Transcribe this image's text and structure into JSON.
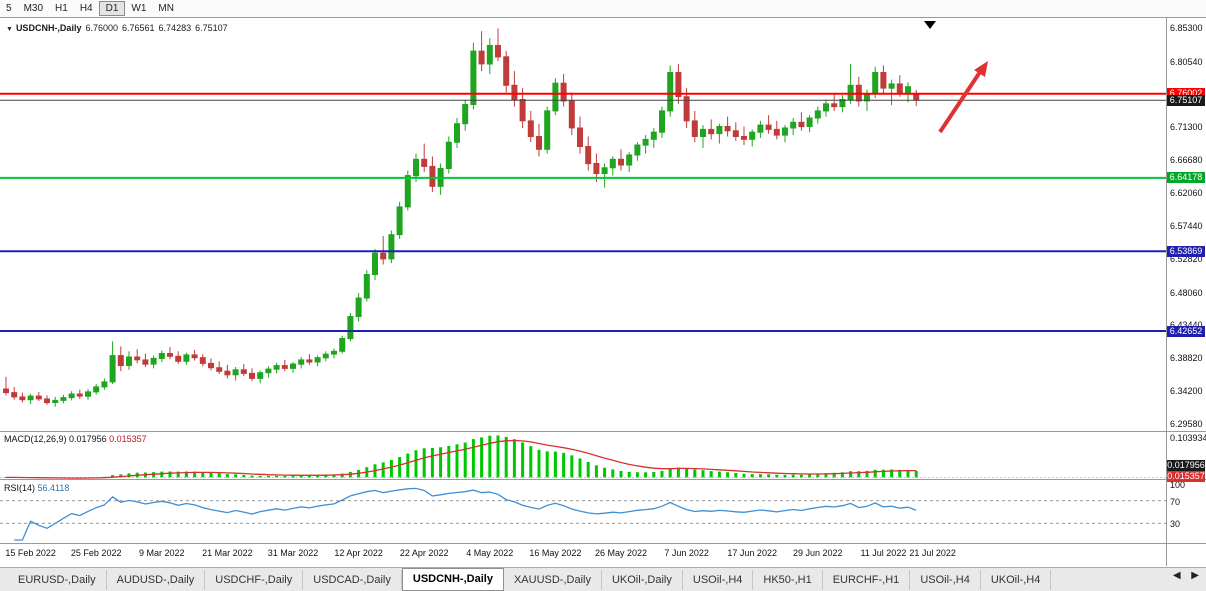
{
  "toolbar": {
    "periods": [
      {
        "label": "5",
        "active": false
      },
      {
        "label": "M30",
        "active": false
      },
      {
        "label": "H1",
        "active": false
      },
      {
        "label": "H4",
        "active": false
      },
      {
        "label": "D1",
        "active": true
      },
      {
        "label": "W1",
        "active": false
      },
      {
        "label": "MN",
        "active": false
      }
    ]
  },
  "chart": {
    "title": "USDCNH-,Daily",
    "open": "6.76000",
    "high": "6.76561",
    "low": "6.74283",
    "close": "6.75107"
  },
  "price_axis": {
    "labels": [
      "6.85300",
      "6.80540",
      "6.71300",
      "6.66680",
      "6.62060",
      "6.57440",
      "6.52820",
      "6.48060",
      "6.43440",
      "6.38820",
      "6.34200",
      "6.29580"
    ],
    "badges": [
      {
        "text": "6.76002",
        "bg": "#ff0000"
      },
      {
        "text": "6.75107",
        "bg": "#1a1a1a"
      },
      {
        "text": "6.64178",
        "bg": "#00a82a"
      },
      {
        "text": "6.53869",
        "bg": "#2020b0"
      },
      {
        "text": "6.42652",
        "bg": "#2020b0"
      }
    ]
  },
  "hlines": [
    {
      "price": 6.76002,
      "color": "#ff0000",
      "width": 2
    },
    {
      "price": 6.75107,
      "color": "#444444",
      "width": 1
    },
    {
      "price": 6.64178,
      "color": "#00c832",
      "width": 2
    },
    {
      "price": 6.53869,
      "color": "#2020b0",
      "width": 2
    },
    {
      "price": 6.42652,
      "color": "#2020b0",
      "width": 2
    }
  ],
  "macd": {
    "name": "MACD(12,26,9)",
    "value_main": "0.017956",
    "value_signal": "0.015357",
    "axis_top": "0.103934",
    "histogram_color": "#00c800",
    "signal_color": "#d83030"
  },
  "rsi": {
    "name": "RSI(14)",
    "value": "56.4118",
    "axis_labels": [
      "100",
      "70",
      "30"
    ],
    "levels": [
      70,
      30
    ],
    "line_color": "#3e8fd6"
  },
  "annotations": {
    "trend_arrow_color": "#e03232"
  },
  "time_axis": [
    "15 Feb 2022",
    "25 Feb 2022",
    "9 Mar 2022",
    "21 Mar 2022",
    "31 Mar 2022",
    "12 Apr 2022",
    "22 Apr 2022",
    "4 May 2022",
    "16 May 2022",
    "26 May 2022",
    "7 Jun 2022",
    "17 Jun 2022",
    "29 Jun 2022",
    "11 Jul 2022",
    "21 Jul 2022"
  ],
  "tabs": {
    "items": [
      {
        "label": "EURUSD-,Daily",
        "active": false
      },
      {
        "label": "AUDUSD-,Daily",
        "active": false
      },
      {
        "label": "USDCHF-,Daily",
        "active": false
      },
      {
        "label": "USDCAD-,Daily",
        "active": false
      },
      {
        "label": "USDCNH-,Daily",
        "active": true
      },
      {
        "label": "XAUUSD-,Daily",
        "active": false
      },
      {
        "label": "UKOil-,Daily",
        "active": false
      },
      {
        "label": "USOil-,H4",
        "active": false
      },
      {
        "label": "HK50-,H1",
        "active": false
      },
      {
        "label": "EURCHF-,H1",
        "active": false
      },
      {
        "label": "USOil-,H4",
        "active": false
      },
      {
        "label": "UKOil-,H4",
        "active": false
      }
    ],
    "nav_left": "◀",
    "nav_right": "▶"
  },
  "chart_data": {
    "type": "candlestick",
    "symbol": "USDCNH",
    "timeframe": "Daily",
    "price_range": [
      6.286,
      6.868
    ],
    "up_color": "#1fa51f",
    "down_color": "#c13b3b",
    "x_label_indices": [
      3,
      11,
      19,
      27,
      35,
      43,
      51,
      59,
      67,
      75,
      83,
      91,
      99,
      107,
      113
    ],
    "indicators": {
      "macd_params": [
        12,
        26,
        9
      ],
      "rsi_period": 14
    },
    "candles": [
      [
        6.345,
        6.362,
        6.336,
        6.34
      ],
      [
        6.34,
        6.348,
        6.33,
        6.334
      ],
      [
        6.334,
        6.34,
        6.326,
        6.33
      ],
      [
        6.33,
        6.338,
        6.324,
        6.335
      ],
      [
        6.335,
        6.341,
        6.328,
        6.331
      ],
      [
        6.331,
        6.336,
        6.323,
        6.326
      ],
      [
        6.326,
        6.334,
        6.32,
        6.329
      ],
      [
        6.329,
        6.337,
        6.325,
        6.333
      ],
      [
        6.333,
        6.342,
        6.329,
        6.338
      ],
      [
        6.338,
        6.344,
        6.331,
        6.335
      ],
      [
        6.335,
        6.345,
        6.33,
        6.341
      ],
      [
        6.341,
        6.352,
        6.337,
        6.348
      ],
      [
        6.348,
        6.36,
        6.344,
        6.355
      ],
      [
        6.355,
        6.412,
        6.352,
        6.392
      ],
      [
        6.392,
        6.405,
        6.37,
        6.378
      ],
      [
        6.378,
        6.398,
        6.372,
        6.39
      ],
      [
        6.39,
        6.401,
        6.381,
        6.386
      ],
      [
        6.386,
        6.395,
        6.376,
        6.38
      ],
      [
        6.38,
        6.392,
        6.374,
        6.388
      ],
      [
        6.388,
        6.399,
        6.383,
        6.395
      ],
      [
        6.395,
        6.404,
        6.387,
        6.391
      ],
      [
        6.391,
        6.398,
        6.38,
        6.384
      ],
      [
        6.384,
        6.396,
        6.379,
        6.393
      ],
      [
        6.393,
        6.4,
        6.385,
        6.389
      ],
      [
        6.389,
        6.394,
        6.377,
        6.381
      ],
      [
        6.381,
        6.388,
        6.371,
        6.375
      ],
      [
        6.375,
        6.384,
        6.366,
        6.37
      ],
      [
        6.37,
        6.379,
        6.36,
        6.365
      ],
      [
        6.365,
        6.376,
        6.357,
        6.372
      ],
      [
        6.372,
        6.38,
        6.363,
        6.367
      ],
      [
        6.367,
        6.374,
        6.356,
        6.36
      ],
      [
        6.36,
        6.371,
        6.353,
        6.368
      ],
      [
        6.368,
        6.377,
        6.361,
        6.373
      ],
      [
        6.373,
        6.382,
        6.367,
        6.378
      ],
      [
        6.378,
        6.386,
        6.37,
        6.374
      ],
      [
        6.374,
        6.383,
        6.368,
        6.38
      ],
      [
        6.38,
        6.39,
        6.374,
        6.386
      ],
      [
        6.386,
        6.394,
        6.379,
        6.383
      ],
      [
        6.383,
        6.392,
        6.377,
        6.389
      ],
      [
        6.389,
        6.398,
        6.384,
        6.394
      ],
      [
        6.394,
        6.402,
        6.388,
        6.398
      ],
      [
        6.398,
        6.42,
        6.395,
        6.416
      ],
      [
        6.416,
        6.452,
        6.412,
        6.447
      ],
      [
        6.447,
        6.48,
        6.44,
        6.473
      ],
      [
        6.473,
        6.512,
        6.468,
        6.506
      ],
      [
        6.506,
        6.542,
        6.498,
        6.536
      ],
      [
        6.536,
        6.56,
        6.52,
        6.528
      ],
      [
        6.528,
        6.568,
        6.522,
        6.562
      ],
      [
        6.562,
        6.608,
        6.556,
        6.601
      ],
      [
        6.601,
        6.652,
        6.596,
        6.645
      ],
      [
        6.645,
        6.676,
        6.636,
        6.668
      ],
      [
        6.668,
        6.69,
        6.65,
        6.658
      ],
      [
        6.658,
        6.672,
        6.622,
        6.63
      ],
      [
        6.63,
        6.662,
        6.618,
        6.655
      ],
      [
        6.655,
        6.7,
        6.648,
        6.692
      ],
      [
        6.692,
        6.726,
        6.684,
        6.718
      ],
      [
        6.718,
        6.752,
        6.708,
        6.745
      ],
      [
        6.745,
        6.832,
        6.738,
        6.82
      ],
      [
        6.82,
        6.848,
        6.792,
        6.802
      ],
      [
        6.802,
        6.838,
        6.788,
        6.828
      ],
      [
        6.828,
        6.852,
        6.806,
        6.812
      ],
      [
        6.812,
        6.82,
        6.762,
        6.772
      ],
      [
        6.772,
        6.792,
        6.742,
        6.752
      ],
      [
        6.752,
        6.768,
        6.712,
        6.722
      ],
      [
        6.722,
        6.736,
        6.692,
        6.7
      ],
      [
        6.7,
        6.718,
        6.672,
        6.682
      ],
      [
        6.682,
        6.742,
        6.676,
        6.736
      ],
      [
        6.736,
        6.782,
        6.73,
        6.775
      ],
      [
        6.775,
        6.788,
        6.742,
        6.75
      ],
      [
        6.75,
        6.762,
        6.702,
        6.712
      ],
      [
        6.712,
        6.728,
        6.676,
        6.686
      ],
      [
        6.686,
        6.7,
        6.652,
        6.662
      ],
      [
        6.662,
        6.676,
        6.636,
        6.648
      ],
      [
        6.648,
        6.662,
        6.628,
        6.656
      ],
      [
        6.656,
        6.672,
        6.645,
        6.668
      ],
      [
        6.668,
        6.682,
        6.652,
        6.66
      ],
      [
        6.66,
        6.678,
        6.65,
        6.674
      ],
      [
        6.674,
        6.692,
        6.666,
        6.688
      ],
      [
        6.688,
        6.702,
        6.676,
        6.696
      ],
      [
        6.696,
        6.712,
        6.684,
        6.706
      ],
      [
        6.706,
        6.742,
        6.698,
        6.736
      ],
      [
        6.736,
        6.8,
        6.728,
        6.79
      ],
      [
        6.79,
        6.802,
        6.746,
        6.756
      ],
      [
        6.756,
        6.768,
        6.712,
        6.722
      ],
      [
        6.722,
        6.736,
        6.692,
        6.7
      ],
      [
        6.7,
        6.716,
        6.684,
        6.71
      ],
      [
        6.71,
        6.724,
        6.696,
        6.704
      ],
      [
        6.704,
        6.718,
        6.69,
        6.714
      ],
      [
        6.714,
        6.728,
        6.7,
        6.708
      ],
      [
        6.708,
        6.72,
        6.694,
        6.7
      ],
      [
        6.7,
        6.714,
        6.688,
        6.696
      ],
      [
        6.696,
        6.71,
        6.686,
        6.706
      ],
      [
        6.706,
        6.722,
        6.698,
        6.716
      ],
      [
        6.716,
        6.73,
        6.704,
        6.71
      ],
      [
        6.71,
        6.722,
        6.696,
        6.702
      ],
      [
        6.702,
        6.716,
        6.692,
        6.712
      ],
      [
        6.712,
        6.726,
        6.702,
        6.72
      ],
      [
        6.72,
        6.734,
        6.708,
        6.714
      ],
      [
        6.714,
        6.73,
        6.706,
        6.726
      ],
      [
        6.726,
        6.742,
        6.718,
        6.736
      ],
      [
        6.736,
        6.752,
        6.728,
        6.746
      ],
      [
        6.746,
        6.76,
        6.736,
        6.742
      ],
      [
        6.742,
        6.758,
        6.734,
        6.752
      ],
      [
        6.752,
        6.802,
        6.746,
        6.772
      ],
      [
        6.772,
        6.784,
        6.742,
        6.75
      ],
      [
        6.75,
        6.766,
        6.736,
        6.76
      ],
      [
        6.76,
        6.798,
        6.754,
        6.79
      ],
      [
        6.79,
        6.8,
        6.76,
        6.768
      ],
      [
        6.768,
        6.78,
        6.744,
        6.774
      ],
      [
        6.774,
        6.786,
        6.756,
        6.762
      ],
      [
        6.762,
        6.776,
        6.748,
        6.77
      ],
      [
        6.76,
        6.76561,
        6.74283,
        6.75107
      ]
    ]
  }
}
